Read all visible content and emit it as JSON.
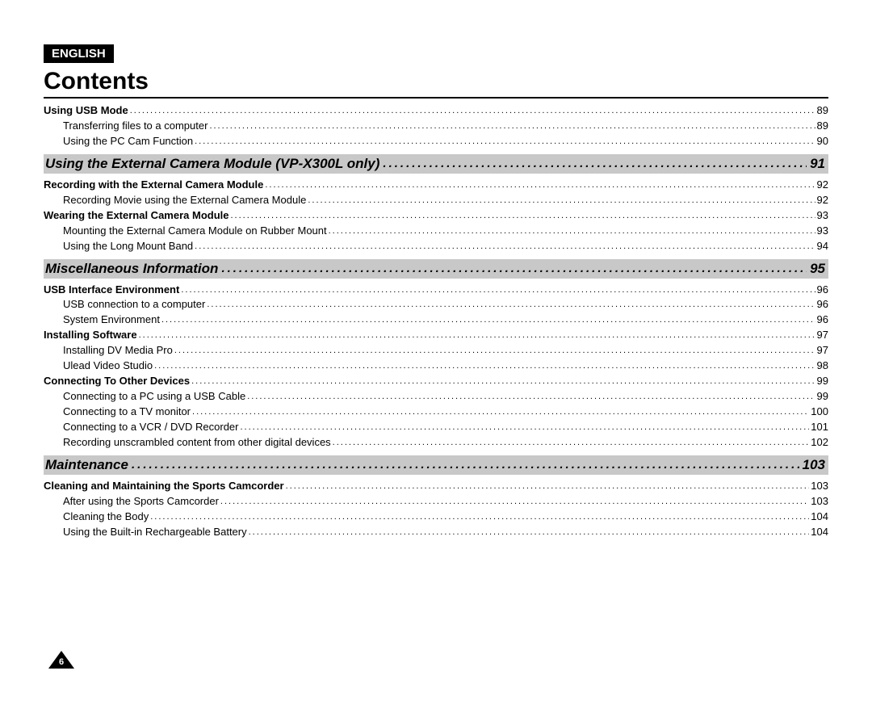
{
  "language_badge": "ENGLISH",
  "title": "Contents",
  "page_number": "6",
  "dots_char": ".",
  "colors": {
    "section_bg": "#c8c8c8",
    "text": "#000000",
    "page_bg": "#ffffff",
    "badge_bg": "#000000",
    "badge_text": "#ffffff"
  },
  "toc": [
    {
      "type": "row",
      "bold": true,
      "indent": 0,
      "label": "Using USB Mode",
      "page": "89"
    },
    {
      "type": "row",
      "bold": false,
      "indent": 1,
      "label": "Transferring files to a computer",
      "page": "89"
    },
    {
      "type": "row",
      "bold": false,
      "indent": 1,
      "label": "Using the PC Cam Function",
      "page": "90"
    },
    {
      "type": "section",
      "label": "Using the External Camera Module (VP-X300L only)",
      "page": "91"
    },
    {
      "type": "row",
      "bold": true,
      "indent": 0,
      "label": "Recording with the External Camera Module",
      "page": "92"
    },
    {
      "type": "row",
      "bold": false,
      "indent": 1,
      "label": "Recording Movie using the External Camera Module",
      "page": "92"
    },
    {
      "type": "row",
      "bold": true,
      "indent": 0,
      "label": "Wearing the External Camera Module",
      "page": "93"
    },
    {
      "type": "row",
      "bold": false,
      "indent": 1,
      "label": "Mounting the External Camera Module on Rubber Mount",
      "page": "93"
    },
    {
      "type": "row",
      "bold": false,
      "indent": 1,
      "label": "Using the Long Mount Band",
      "page": "94"
    },
    {
      "type": "section",
      "label": "Miscellaneous Information",
      "page": "95"
    },
    {
      "type": "row",
      "bold": true,
      "indent": 0,
      "label": "USB Interface Environment",
      "page": "96"
    },
    {
      "type": "row",
      "bold": false,
      "indent": 1,
      "label": "USB connection to a computer",
      "page": "96"
    },
    {
      "type": "row",
      "bold": false,
      "indent": 1,
      "label": "System Environment",
      "page": "96"
    },
    {
      "type": "row",
      "bold": true,
      "indent": 0,
      "label": "Installing Software",
      "page": "97"
    },
    {
      "type": "row",
      "bold": false,
      "indent": 1,
      "label": "Installing DV Media Pro",
      "page": "97"
    },
    {
      "type": "row",
      "bold": false,
      "indent": 1,
      "label": "Ulead Video Studio",
      "page": "98"
    },
    {
      "type": "row",
      "bold": true,
      "indent": 0,
      "label": "Connecting To Other Devices",
      "page": "99"
    },
    {
      "type": "row",
      "bold": false,
      "indent": 1,
      "label": "Connecting to a PC using a USB Cable",
      "page": "99"
    },
    {
      "type": "row",
      "bold": false,
      "indent": 1,
      "label": "Connecting to a TV monitor",
      "page": "100"
    },
    {
      "type": "row",
      "bold": false,
      "indent": 1,
      "label": "Connecting to a VCR / DVD Recorder",
      "page": "101"
    },
    {
      "type": "row",
      "bold": false,
      "indent": 1,
      "label": "Recording unscrambled content from other digital devices",
      "page": "102"
    },
    {
      "type": "section",
      "label": "Maintenance",
      "page": "103"
    },
    {
      "type": "row",
      "bold": true,
      "indent": 0,
      "label": "Cleaning and Maintaining the Sports Camcorder",
      "page": "103"
    },
    {
      "type": "row",
      "bold": false,
      "indent": 1,
      "label": "After using the Sports Camcorder",
      "page": "103"
    },
    {
      "type": "row",
      "bold": false,
      "indent": 1,
      "label": "Cleaning the Body",
      "page": "104"
    },
    {
      "type": "row",
      "bold": false,
      "indent": 1,
      "label": "Using the Built-in Rechargeable Battery",
      "page": "104"
    }
  ]
}
